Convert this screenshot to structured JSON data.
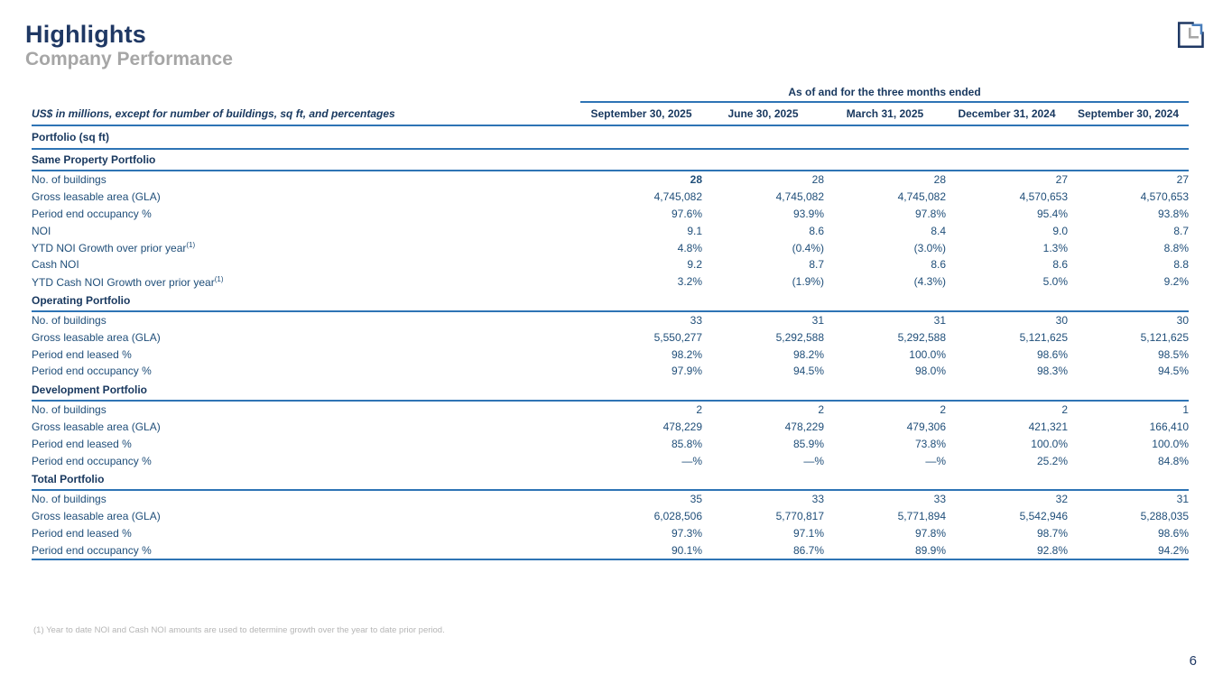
{
  "page": {
    "title": "Highlights",
    "subtitle": "Company Performance",
    "footnote": "(1) Year to date NOI and Cash NOI amounts are used to determine growth over the year to date prior period.",
    "page_number": "6"
  },
  "colors": {
    "title_navy": "#1F3864",
    "subtitle_gray": "#A6A6A6",
    "table_text": "#1F4E79",
    "rule_blue": "#2E74B5"
  },
  "icons": {
    "logo": "company-logo-square-clock"
  },
  "table": {
    "span_header": "As of and for the three months ended",
    "row_label_header": "US$ in millions, except for number of buildings, sq ft, and percentages",
    "columns": [
      "September 30, 2025",
      "June 30, 2025",
      "March 31, 2025",
      "December 31, 2024",
      "September 30, 2024"
    ],
    "group_title": "Portfolio (sq ft)",
    "sections": [
      {
        "title": "Same Property Portfolio",
        "rows": [
          {
            "label": "No. of buildings",
            "values": [
              "28",
              "28",
              "28",
              "27",
              "27"
            ],
            "bold_first": true
          },
          {
            "label": "Gross leasable area (GLA)",
            "values": [
              "4,745,082",
              "4,745,082",
              "4,745,082",
              "4,570,653",
              "4,570,653"
            ]
          },
          {
            "label": "Period end occupancy %",
            "values": [
              "97.6%",
              "93.9%",
              "97.8%",
              "95.4%",
              "93.8%"
            ]
          },
          {
            "label": "NOI",
            "values": [
              "9.1",
              "8.6",
              "8.4",
              "9.0",
              "8.7"
            ]
          },
          {
            "label": "YTD NOI Growth over prior year",
            "sup": "(1)",
            "values": [
              "4.8%",
              "(0.4%)",
              "(3.0%)",
              "1.3%",
              "8.8%"
            ]
          },
          {
            "label": "Cash NOI",
            "values": [
              "9.2",
              "8.7",
              "8.6",
              "8.6",
              "8.8"
            ]
          },
          {
            "label": "YTD Cash NOI Growth over prior year",
            "sup": "(1)",
            "values": [
              "3.2%",
              "(1.9%)",
              "(4.3%)",
              "5.0%",
              "9.2%"
            ]
          }
        ]
      },
      {
        "title": "Operating Portfolio",
        "rows": [
          {
            "label": "No. of buildings",
            "values": [
              "33",
              "31",
              "31",
              "30",
              "30"
            ]
          },
          {
            "label": "Gross leasable area (GLA)",
            "values": [
              "5,550,277",
              "5,292,588",
              "5,292,588",
              "5,121,625",
              "5,121,625"
            ]
          },
          {
            "label": "Period end leased %",
            "values": [
              "98.2%",
              "98.2%",
              "100.0%",
              "98.6%",
              "98.5%"
            ]
          },
          {
            "label": "Period end occupancy %",
            "values": [
              "97.9%",
              "94.5%",
              "98.0%",
              "98.3%",
              "94.5%"
            ]
          }
        ]
      },
      {
        "title": "Development Portfolio",
        "rows": [
          {
            "label": "No. of buildings",
            "values": [
              "2",
              "2",
              "2",
              "2",
              "1"
            ]
          },
          {
            "label": "Gross leasable area (GLA)",
            "values": [
              "478,229",
              "478,229",
              "479,306",
              "421,321",
              "166,410"
            ]
          },
          {
            "label": "Period end leased %",
            "values": [
              "85.8%",
              "85.9%",
              "73.8%",
              "100.0%",
              "100.0%"
            ]
          },
          {
            "label": "Period end occupancy %",
            "values": [
              "—%",
              "—%",
              "—%",
              "25.2%",
              "84.8%"
            ]
          }
        ]
      },
      {
        "title": "Total Portfolio",
        "rows": [
          {
            "label": "No. of buildings",
            "values": [
              "35",
              "33",
              "33",
              "32",
              "31"
            ]
          },
          {
            "label": "Gross leasable area (GLA)",
            "values": [
              "6,028,506",
              "5,770,817",
              "5,771,894",
              "5,542,946",
              "5,288,035"
            ]
          },
          {
            "label": "Period end leased %",
            "values": [
              "97.3%",
              "97.1%",
              "97.8%",
              "98.7%",
              "98.6%"
            ]
          },
          {
            "label": "Period end occupancy %",
            "values": [
              "90.1%",
              "86.7%",
              "89.9%",
              "92.8%",
              "94.2%"
            ]
          }
        ]
      }
    ]
  }
}
